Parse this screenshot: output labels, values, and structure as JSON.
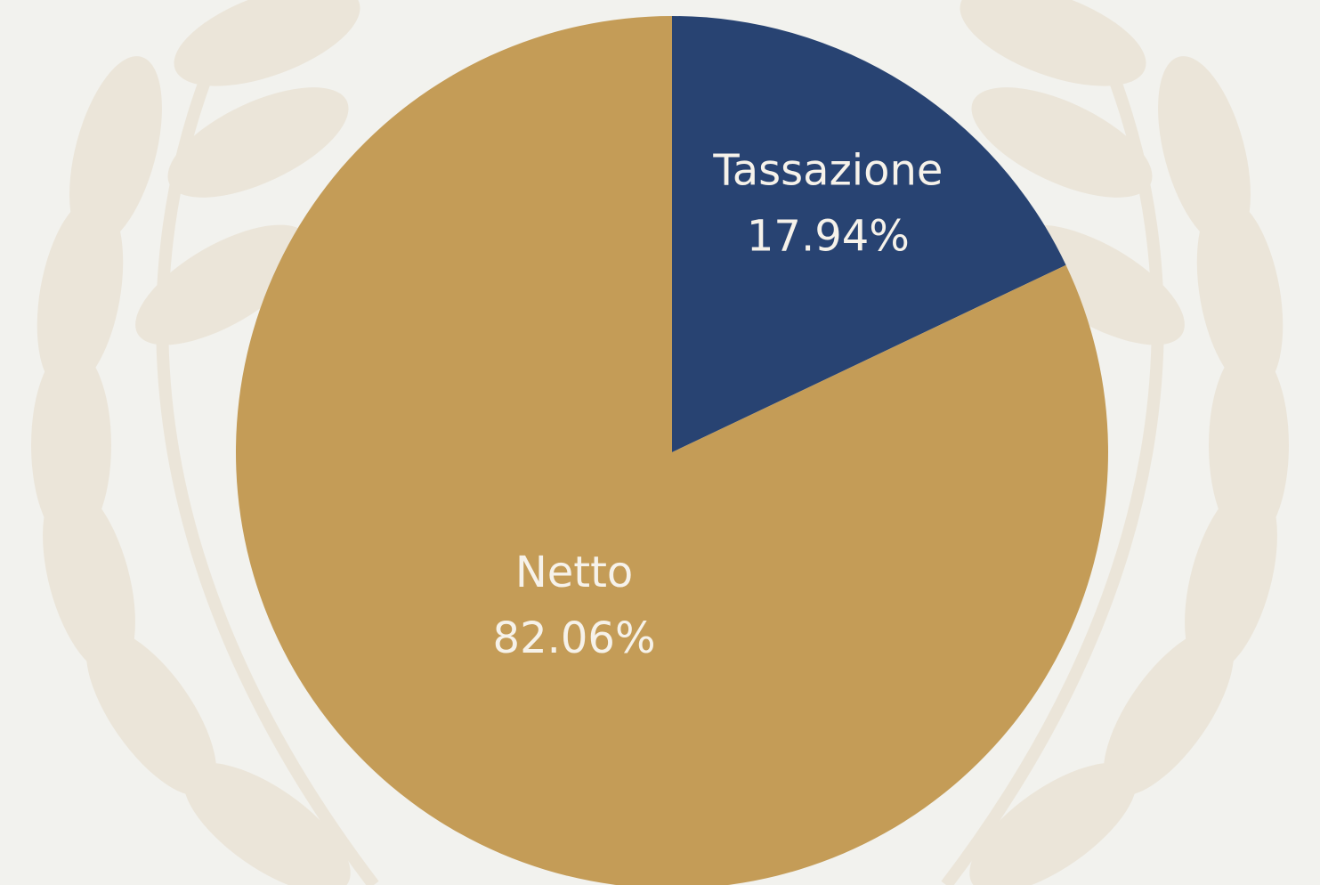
{
  "chart_data": {
    "type": "pie",
    "categories": [
      "Tassazione",
      "Netto"
    ],
    "values": [
      17.94,
      82.06
    ],
    "value_labels": [
      "17.94%",
      "82.06%"
    ],
    "colors": [
      "#284372",
      "#c49c57"
    ]
  }
}
